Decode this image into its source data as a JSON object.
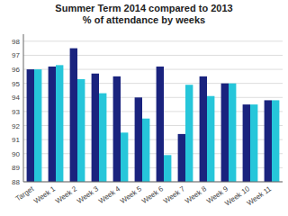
{
  "chart_data": {
    "type": "bar",
    "title": "Summer Term 2014 compared to 2013\n% of attendance by weeks",
    "categories": [
      "Target",
      "Week 1",
      "Week 2",
      "Week 3",
      "Week 4",
      "Week 5",
      "Week 6",
      "Week 7",
      "Week 8",
      "Week 9",
      "Week 10",
      "Week 11"
    ],
    "series": [
      {
        "color": "#1a237e",
        "values": [
          96.0,
          96.2,
          97.5,
          95.7,
          95.5,
          94.0,
          96.2,
          91.4,
          95.5,
          95.0,
          93.5,
          93.8
        ]
      },
      {
        "color": "#26c6da",
        "values": [
          96.0,
          96.3,
          95.3,
          94.3,
          91.5,
          92.5,
          89.9,
          94.9,
          94.1,
          95.0,
          93.5,
          93.8
        ]
      }
    ],
    "ylim": [
      88,
      98.5
    ],
    "yticks": [
      88,
      89,
      90,
      91,
      92,
      93,
      94,
      95,
      96,
      97,
      98
    ],
    "grid": true
  }
}
